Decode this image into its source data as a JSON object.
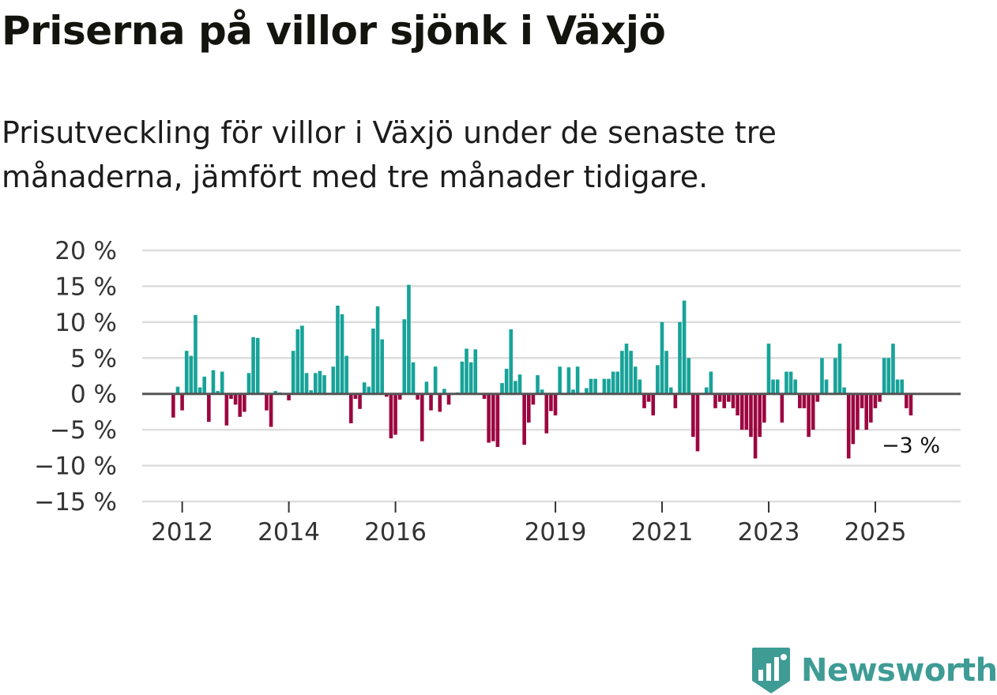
{
  "header": {
    "title": "Priserna på villor sjönk i Växjö",
    "subtitle": "Prisutveckling för villor i Växjö under de senaste tre månaderna, jämfört med tre månader tidigare."
  },
  "brand": {
    "name": "Newsworthy",
    "icon": "newsworthy-logo-icon",
    "color": "#3e9c95"
  },
  "colors": {
    "positive": "#17a399",
    "negative": "#9c0640",
    "zero_line": "#555555",
    "grid": "#dddddd"
  },
  "chart_data": {
    "type": "bar",
    "title": "Priserna på villor sjönk i Växjö",
    "ylabel": "",
    "xlabel": "",
    "ylim": [
      -15,
      20
    ],
    "y_ticks": [
      {
        "value": 20,
        "label": "20 %"
      },
      {
        "value": 15,
        "label": "15 %"
      },
      {
        "value": 10,
        "label": "10 %"
      },
      {
        "value": 5,
        "label": "5 %"
      },
      {
        "value": 0,
        "label": "0 %"
      },
      {
        "value": -5,
        "label": "−5 %"
      },
      {
        "value": -10,
        "label": "−10 %"
      },
      {
        "value": -15,
        "label": "−15 %"
      }
    ],
    "x_start": 2011.833,
    "x_step": 0.08333,
    "x_range": [
      2011.25,
      2026.6
    ],
    "x_ticks": [
      {
        "value": 2012,
        "label": "2012"
      },
      {
        "value": 2014,
        "label": "2014"
      },
      {
        "value": 2016,
        "label": "2016"
      },
      {
        "value": 2019,
        "label": "2019"
      },
      {
        "value": 2021,
        "label": "2021"
      },
      {
        "value": 2023,
        "label": "2023"
      },
      {
        "value": 2025,
        "label": "2025"
      }
    ],
    "values": [
      -3.3,
      1.0,
      -2.3,
      6.0,
      5.3,
      11.0,
      0.9,
      2.4,
      -3.9,
      3.3,
      0.4,
      3.1,
      -4.4,
      -0.7,
      -1.5,
      -3.2,
      -2.5,
      2.9,
      7.9,
      7.8,
      0.2,
      -2.3,
      -4.6,
      0.4,
      0.2,
      0.0,
      -0.9,
      6.0,
      9.0,
      9.5,
      2.9,
      0.5,
      2.9,
      3.2,
      2.6,
      0.1,
      3.8,
      12.3,
      11.1,
      5.3,
      -4.1,
      -0.7,
      -2.1,
      1.6,
      1.0,
      9.1,
      12.2,
      7.6,
      -0.4,
      -6.2,
      -5.7,
      -0.8,
      10.4,
      15.2,
      4.4,
      -0.8,
      -6.6,
      1.7,
      -2.3,
      3.8,
      -2.5,
      0.7,
      -1.5,
      -0.1,
      0.2,
      4.5,
      6.3,
      4.4,
      6.2,
      0.0,
      -0.7,
      -6.8,
      -6.6,
      -7.4,
      1.5,
      3.5,
      9.0,
      1.8,
      2.7,
      -7.1,
      -4.0,
      -1.5,
      2.6,
      0.6,
      -5.5,
      -2.4,
      -3.0,
      3.8,
      0.0,
      3.7,
      0.6,
      3.8,
      0.0,
      0.8,
      2.1,
      2.1,
      0.0,
      2.1,
      2.1,
      3.1,
      3.1,
      6.0,
      7.0,
      6.0,
      3.8,
      2.0,
      -2.0,
      -1.1,
      -3.0,
      4.0,
      10.0,
      6.0,
      0.9,
      -2.0,
      10.0,
      13.0,
      5.0,
      -6.0,
      -8.0,
      0.0,
      0.9,
      3.1,
      -2.0,
      -1.1,
      -2.0,
      -1.1,
      -2.0,
      -3.0,
      -5.0,
      -5.0,
      -6.0,
      -9.0,
      -6.0,
      -4.0,
      7.0,
      2.0,
      2.0,
      -4.0,
      3.1,
      3.1,
      2.0,
      -2.0,
      -2.0,
      -6.0,
      -5.0,
      -1.1,
      5.0,
      2.0,
      0.0,
      5.0,
      7.0,
      0.9,
      -9.0,
      -7.0,
      -5.0,
      -2.0,
      -5.0,
      -4.0,
      -2.0,
      -1.1,
      5.0,
      5.0,
      7.0,
      2.0,
      2.0,
      -2.0,
      -3.0
    ],
    "annotation": {
      "label": "−3 %",
      "index": "last"
    }
  }
}
